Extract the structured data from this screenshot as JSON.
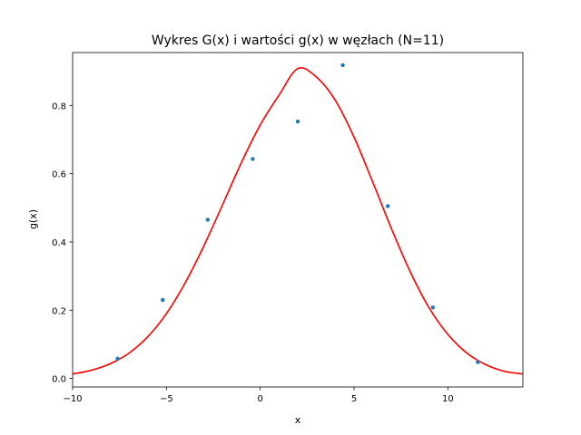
{
  "chart_data": {
    "type": "line",
    "title": "Wykres G(x) i wartości g(x) w węzłach (N=11)",
    "xlabel": "x",
    "ylabel": "g(x)",
    "xlim": [
      -10,
      14
    ],
    "ylim": [
      -0.025,
      0.955
    ],
    "xticks": [
      -10,
      -5,
      0,
      5,
      10
    ],
    "yticks": [
      0.0,
      0.2,
      0.4,
      0.6,
      0.8
    ],
    "xtick_labels": [
      "−10",
      "−5",
      "0",
      "5",
      "10"
    ],
    "ytick_labels": [
      "0.0",
      "0.2",
      "0.4",
      "0.6",
      "0.8"
    ],
    "grid": false,
    "series": [
      {
        "kind": "line",
        "color": "#ff0000",
        "x": [
          -10,
          -9,
          -8,
          -7,
          -6,
          -5,
          -4,
          -3,
          -2,
          -1,
          0,
          1,
          2,
          3,
          4,
          5,
          6,
          7,
          8,
          9,
          10,
          11,
          12,
          13,
          14
        ],
        "values": [
          0.013,
          0.024,
          0.043,
          0.074,
          0.122,
          0.19,
          0.28,
          0.389,
          0.51,
          0.633,
          0.743,
          0.83,
          0.908,
          0.883,
          0.815,
          0.707,
          0.575,
          0.438,
          0.312,
          0.207,
          0.129,
          0.075,
          0.041,
          0.021,
          0.013
        ]
      },
      {
        "kind": "scatter",
        "color": "#1f77b4",
        "x": [
          -7.6,
          -5.2,
          -2.8,
          -0.4,
          2.0,
          4.4,
          6.8,
          9.2,
          11.6
        ],
        "values": [
          0.058,
          0.23,
          0.465,
          0.643,
          0.753,
          0.918,
          0.505,
          0.208,
          0.048
        ]
      }
    ]
  }
}
